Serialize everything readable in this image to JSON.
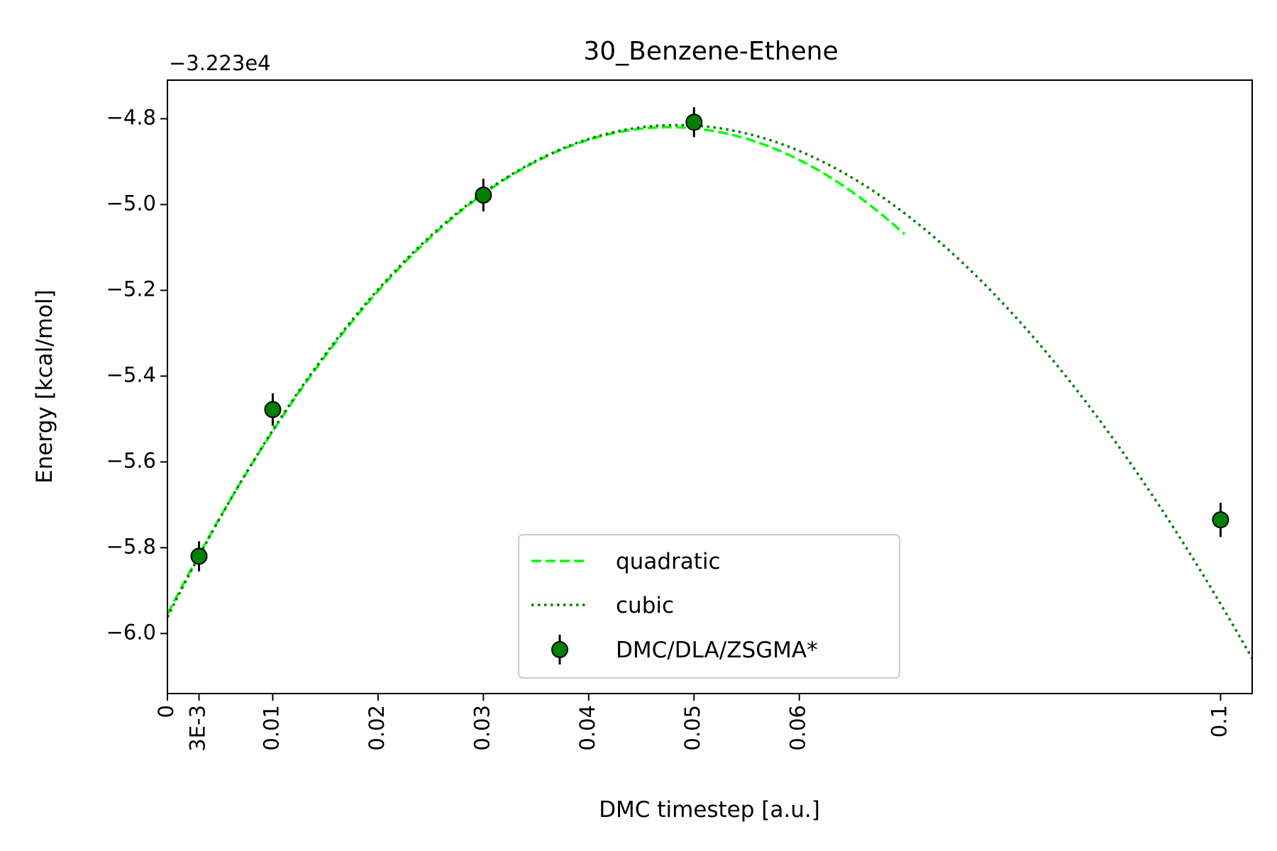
{
  "chart_data": {
    "type": "scatter",
    "title": "30_Benzene-Ethene",
    "xlabel": "DMC timestep [a.u.]",
    "ylabel": "Energy [kcal/mol]",
    "y_offset_label": "−3.223e4",
    "xlim": [
      0,
      0.103
    ],
    "ylim": [
      -6.14,
      -4.71
    ],
    "x_ticks": [
      {
        "value": 0,
        "label": "0"
      },
      {
        "value": 0.003,
        "label": "3E-3"
      },
      {
        "value": 0.01,
        "label": "0.01"
      },
      {
        "value": 0.02,
        "label": "0.02"
      },
      {
        "value": 0.03,
        "label": "0.03"
      },
      {
        "value": 0.04,
        "label": "0.04"
      },
      {
        "value": 0.05,
        "label": "0.05"
      },
      {
        "value": 0.06,
        "label": "0.06"
      },
      {
        "value": 0.1,
        "label": "0.1"
      }
    ],
    "y_ticks": [
      {
        "value": -4.8,
        "label": "−4.8"
      },
      {
        "value": -5.0,
        "label": "−5.0"
      },
      {
        "value": -5.2,
        "label": "−5.2"
      },
      {
        "value": -5.4,
        "label": "−5.4"
      },
      {
        "value": -5.6,
        "label": "−5.6"
      },
      {
        "value": -5.8,
        "label": "−5.8"
      },
      {
        "value": -6.0,
        "label": "−6.0"
      }
    ],
    "grid": false,
    "legend_position": "lower-center",
    "series": [
      {
        "name": "quadratic",
        "kind": "line",
        "style": "dashed",
        "color": "#00ff00",
        "x_range": [
          0,
          0.07
        ],
        "coefficients": [
          -5.955,
          47.65,
          -500
        ]
      },
      {
        "name": "cubic",
        "kind": "line",
        "style": "dotted",
        "color": "#008000",
        "x_range": [
          0,
          0.103
        ],
        "coefficients": [
          -5.962,
          49.1,
          -559.2,
          713
        ]
      },
      {
        "name": "DMC/DLA/ZSGMA*",
        "kind": "errorbar",
        "color": "#008000",
        "points": [
          {
            "x": 0.003,
            "y": -5.82,
            "err": 0.035
          },
          {
            "x": 0.01,
            "y": -5.478,
            "err": 0.038
          },
          {
            "x": 0.03,
            "y": -4.978,
            "err": 0.038
          },
          {
            "x": 0.05,
            "y": -4.808,
            "err": 0.035
          },
          {
            "x": 0.1,
            "y": -5.735,
            "err": 0.04
          }
        ]
      }
    ]
  }
}
